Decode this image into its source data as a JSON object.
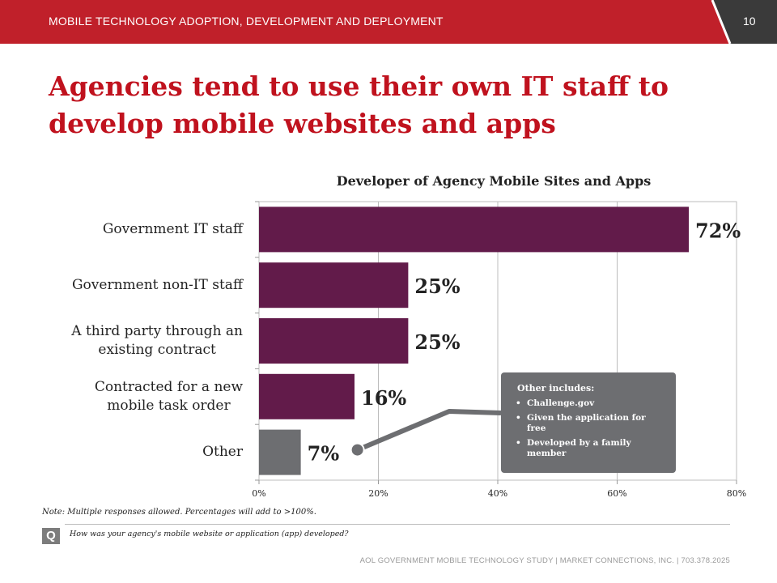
{
  "header": {
    "title": "MOBILE TECHNOLOGY ADOPTION, DEVELOPMENT AND DEPLOYMENT",
    "page_number": "10"
  },
  "page_title": "Agencies tend to use their own IT staff to develop mobile websites and apps",
  "colors": {
    "header_red": "#c0202a",
    "header_dark": "#3a3a3a",
    "bar_purple": "#621b4a",
    "bar_gray": "#6d6e71",
    "title_red": "#c0121e"
  },
  "chart_data": {
    "type": "bar",
    "orientation": "horizontal",
    "title": "Developer of Agency Mobile Sites and Apps",
    "categories": [
      "Government IT staff",
      "Government non-IT staff",
      "A third party through an existing contract",
      "Contracted for a new mobile task order",
      "Other"
    ],
    "category_lines": [
      [
        "Government IT staff"
      ],
      [
        "Government non-IT staff"
      ],
      [
        "A third party through an",
        "existing contract"
      ],
      [
        "Contracted for a new",
        "mobile task order"
      ],
      [
        "Other"
      ]
    ],
    "values": [
      72,
      25,
      25,
      16,
      7
    ],
    "value_labels": [
      "72%",
      "25%",
      "25%",
      "16%",
      "7%"
    ],
    "highlight_index": 4,
    "xlim": [
      0,
      80
    ],
    "xticks": [
      0,
      20,
      40,
      60,
      80
    ],
    "xtick_labels": [
      "0%",
      "20%",
      "40%",
      "60%",
      "80%"
    ],
    "grid": true
  },
  "callout": {
    "title": "Other includes:",
    "items": [
      "Challenge.gov",
      "Given the application for free",
      "Developed by a family member"
    ]
  },
  "note": "Note: Multiple responses allowed.  Percentages will add to >100%.",
  "question": {
    "icon_label": "Q",
    "text": "How was your agency's mobile website or application (app) developed?"
  },
  "footer": "AOL GOVERNMENT MOBILE TECHNOLOGY STUDY  |  MARKET CONNECTIONS, INC.  |  703.378.2025"
}
